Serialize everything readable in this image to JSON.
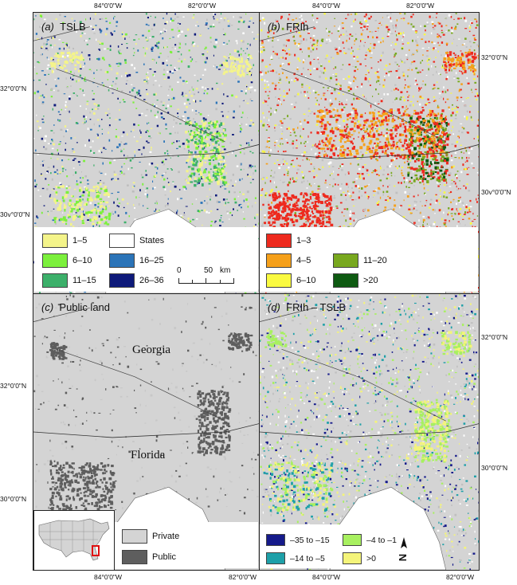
{
  "coords": {
    "top_left": "84°0'0\"W",
    "top_right": "82°0'0\"W",
    "top_left_b": "84°0'0\"W",
    "top_right_b": "82°0'0\"W",
    "bottom_left": "84°0'0\"W",
    "bottom_right": "82°0'0\"W",
    "bottom_left_d": "84°0'0\"W",
    "bottom_right_d": "82°0'0\"W",
    "left_32_a": "32°0'0\"N",
    "left_30_a": "30v°0'0\"N",
    "right_32_b": "32°0'0\"N",
    "right_30_b": "30v°0'0\"N",
    "left_32_c": "32°0'0\"N",
    "left_30_c": "30°0'0\"N",
    "right_32_d": "32°0'0\"N",
    "right_30_d": "30°0'0\"N"
  },
  "panels": {
    "a": {
      "letter": "(a)",
      "title": "TSLB"
    },
    "b": {
      "letter": "(b)",
      "title": "FRIh"
    },
    "c": {
      "letter": "(c)",
      "title": "Public land"
    },
    "d": {
      "letter": "(d)",
      "title": "FRIh – TSLB"
    }
  },
  "legend_a": [
    {
      "label": "1–5",
      "color": "#f4f48a"
    },
    {
      "label": "States",
      "color": "#ffffff"
    },
    {
      "label": "6–10",
      "color": "#7cf03c"
    },
    {
      "label": "16–25",
      "color": "#2b74b8"
    },
    {
      "label": "11–15",
      "color": "#3cb06a"
    },
    {
      "label": "26–36",
      "color": "#0e1a7a"
    }
  ],
  "scale_bar": {
    "start": "0",
    "end": "50",
    "unit": "km"
  },
  "legend_b": [
    {
      "label": "1–3",
      "color": "#ee2a1e"
    },
    {
      "label": "4–5",
      "color": "#f5a01a"
    },
    {
      "label": "11–20",
      "color": "#78a81e"
    },
    {
      "label": "6–10",
      "color": "#fafa40"
    },
    {
      "label": ">20",
      "color": "#0e5a12"
    }
  ],
  "legend_c": [
    {
      "label": "Private",
      "color": "#d4d4d4"
    },
    {
      "label": "Public",
      "color": "#5e5e5e"
    }
  ],
  "state_labels": {
    "georgia": "Georgia",
    "florida": "Florida"
  },
  "legend_d": [
    {
      "label": "–35 to –15",
      "color": "#151a8a"
    },
    {
      "label": "–4 to –1",
      "color": "#a8f060"
    },
    {
      "label": "–14 to –5",
      "color": "#1ea0a8"
    },
    {
      "label": ">0",
      "color": "#f4f47a"
    }
  ],
  "north_arrow": "N"
}
